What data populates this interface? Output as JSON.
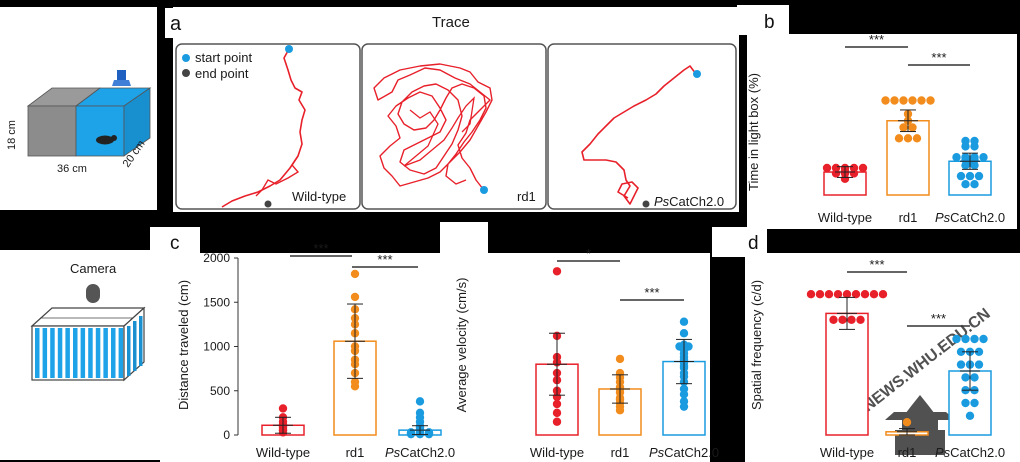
{
  "colors": {
    "wild_type": "#e8202a",
    "rd1": "#f28c1c",
    "pscatch": "#1a9be0",
    "trace": "#e8202a",
    "start": "#1a9be0",
    "end": "#444444",
    "panel_bg": "#ffffff",
    "frame": "#555555"
  },
  "labels": {
    "panel_a": "a",
    "panel_b": "b",
    "panel_c": "c",
    "panel_d": "d",
    "trace_title": "Trace",
    "start_point": "start point",
    "end_point": "end  point",
    "box_h": "18 cm",
    "box_w": "36 cm",
    "box_d": "20 cm",
    "camera": "Camera",
    "watermark": "NEWS.WHU.EDU.CN"
  },
  "traces": [
    {
      "label": "Wild-type"
    },
    {
      "label": "rd1"
    },
    {
      "label_italic": "Ps",
      "label_rest": "CatCh2.0"
    }
  ],
  "chart_data": [
    {
      "type": "bar",
      "panel": "b",
      "ylabel": "Time in light box  (%)",
      "categories": [
        {
          "text": "Wild-type"
        },
        {
          "text": "rd1"
        },
        {
          "italic": "Ps",
          "text": "CatCh2.0"
        }
      ],
      "values": [
        17,
        55,
        25
      ],
      "errors": [
        4,
        8,
        6
      ],
      "ylim": [
        0,
        100
      ],
      "significance": [
        "***",
        "***"
      ],
      "points": [
        [
          20,
          20,
          20,
          20,
          20,
          18,
          16,
          16,
          16,
          12
        ],
        [
          70,
          70,
          70,
          70,
          70,
          70,
          60,
          55,
          50,
          50,
          42,
          42,
          42
        ],
        [
          40,
          40,
          36,
          36,
          28,
          28,
          28,
          28,
          26,
          26,
          24,
          22,
          22,
          14,
          14,
          14,
          8,
          8
        ]
      ]
    },
    {
      "type": "bar",
      "panel": "c",
      "ylabel": "Distance traveled  (cm)",
      "categories": [
        {
          "text": "Wild-type"
        },
        {
          "text": "rd1"
        },
        {
          "italic": "Ps",
          "text": "CatCh2.0"
        }
      ],
      "values": [
        110,
        1060,
        55
      ],
      "errors": [
        90,
        420,
        50
      ],
      "ylim": [
        0,
        2000
      ],
      "ticks": [
        0,
        500,
        1000,
        1500,
        2000
      ],
      "significance": [
        "***",
        "***"
      ],
      "points": [
        [
          300,
          200,
          150,
          120,
          100,
          80,
          60,
          50,
          30
        ],
        [
          1820,
          1560,
          1420,
          1320,
          1250,
          1150,
          1000,
          950,
          850,
          800,
          700,
          600,
          550
        ],
        [
          380,
          250,
          200,
          150,
          100,
          80,
          60,
          50,
          40,
          30,
          30,
          30,
          20,
          20,
          20,
          10,
          10,
          10
        ]
      ]
    },
    {
      "type": "bar",
      "panel": "velocity",
      "ylabel": "Average velocity  (cm/s)",
      "categories": [
        {
          "text": "Wild-type"
        },
        {
          "text": "rd1"
        },
        {
          "italic": "Ps",
          "text": "CatCh2.0"
        }
      ],
      "values": [
        8,
        5.2,
        8.3
      ],
      "errors": [
        3.5,
        1.6,
        2.5
      ],
      "ylim": [
        0,
        20
      ],
      "significance": [
        "*",
        "***"
      ],
      "points": [
        [
          18.5,
          11.2,
          8.8,
          8.2,
          7.0,
          6.2,
          5.0,
          4.3,
          3.5,
          2.5,
          1.5
        ],
        [
          8.6,
          7.0,
          6.5,
          6.0,
          5.4,
          5.2,
          4.8,
          4.2,
          4.0,
          3.6,
          3.2,
          2.8
        ],
        [
          12.8,
          11.5,
          10.2,
          10.0,
          10.0,
          9.8,
          9.6,
          9.2,
          8.8,
          8.5,
          8.2,
          7.8,
          7.6,
          7.0,
          6.6,
          6.0,
          5.2,
          4.6,
          3.8,
          3.2
        ]
      ]
    },
    {
      "type": "bar",
      "panel": "d",
      "ylabel": "Spatial frequency (c/d)",
      "categories": [
        {
          "text": "Wild-type"
        },
        {
          "text": "rd1"
        },
        {
          "italic": "Ps",
          "text": "CatCh2.0"
        }
      ],
      "values": [
        0.38,
        0.01,
        0.2
      ],
      "errors": [
        0.05,
        0.01,
        0.06
      ],
      "ylim": [
        0,
        0.5
      ],
      "significance": [
        "***",
        "***"
      ],
      "points": [
        [
          0.44,
          0.44,
          0.44,
          0.44,
          0.44,
          0.44,
          0.44,
          0.44,
          0.44,
          0.36,
          0.36,
          0.36,
          0.36
        ],
        [
          0.04
        ],
        [
          0.3,
          0.3,
          0.3,
          0.3,
          0.26,
          0.26,
          0.26,
          0.22,
          0.22,
          0.22,
          0.18,
          0.18,
          0.14,
          0.14,
          0.1,
          0.1,
          0.06
        ]
      ]
    }
  ]
}
